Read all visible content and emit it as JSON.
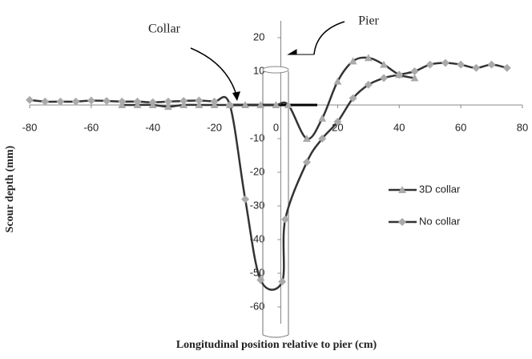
{
  "chart_data": {
    "type": "line",
    "xlabel": "Longitudinal position relative to pier (cm)",
    "ylabel": "Scour depth (mm)",
    "xlim": [
      -80,
      80
    ],
    "xticks": [
      -80,
      -60,
      -40,
      -20,
      0,
      20,
      40,
      60,
      80
    ],
    "ylim": [
      -65,
      25
    ],
    "yticks": [
      -60,
      -50,
      -40,
      -30,
      -20,
      -10,
      0,
      10,
      20
    ],
    "annotations": [
      "Collar",
      "Pier"
    ],
    "series": [
      {
        "name": "3D collar",
        "color": "#333333",
        "marker": "triangle",
        "x": [
          -50,
          -45,
          -40,
          -35,
          -30,
          -25,
          -20,
          -15,
          -10,
          -5,
          0,
          4,
          10,
          15,
          20,
          25,
          30,
          35,
          40,
          45
        ],
        "values": [
          0,
          0,
          0,
          -0.5,
          0,
          0,
          0,
          0,
          0,
          0,
          0,
          0,
          -10,
          -4,
          7,
          13,
          14,
          12,
          9,
          8
        ]
      },
      {
        "name": "No collar",
        "color": "#333333",
        "marker": "diamond",
        "x": [
          -80,
          -75,
          -70,
          -65,
          -60,
          -55,
          -50,
          -45,
          -40,
          -35,
          -30,
          -25,
          -20,
          -15,
          -10,
          -5,
          2,
          3,
          10,
          15,
          20,
          25,
          30,
          35,
          40,
          45,
          50,
          55,
          60,
          65,
          70,
          75
        ],
        "values": [
          1.5,
          1,
          1,
          1,
          1.3,
          1.2,
          1,
          1,
          0.8,
          1,
          1.2,
          1.3,
          1,
          0,
          -28,
          -52,
          -52.5,
          -34,
          -17,
          -10,
          -5,
          2,
          6,
          8,
          9,
          10,
          12,
          12.5,
          12,
          11,
          12,
          11
        ]
      }
    ]
  }
}
